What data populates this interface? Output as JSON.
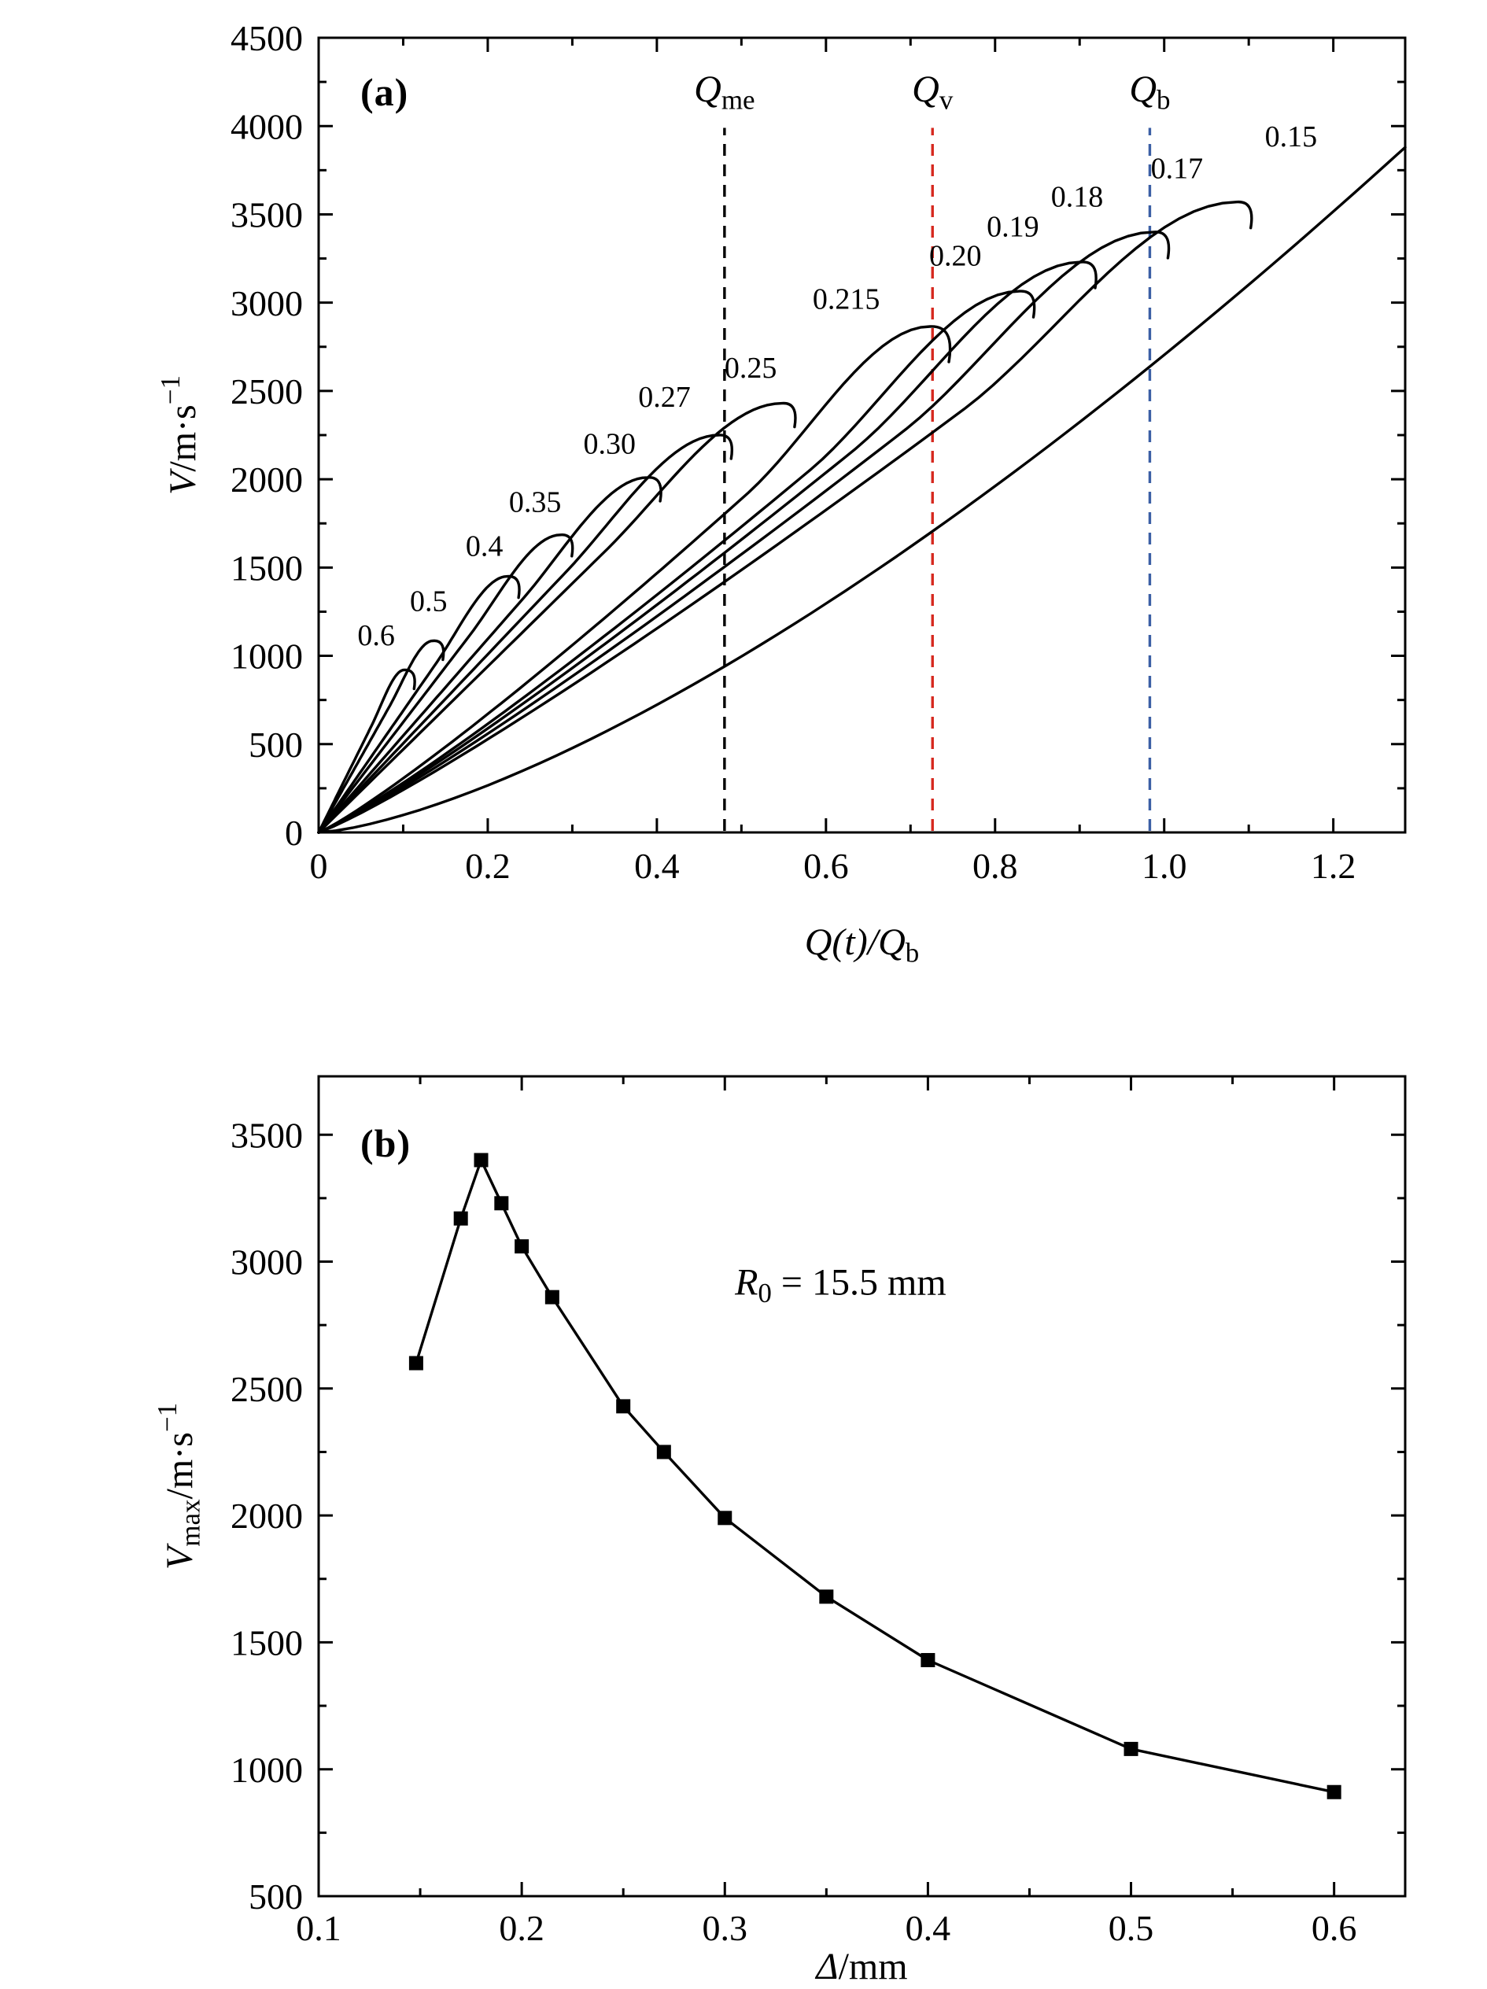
{
  "figure": {
    "background": "#ffffff",
    "axis_color": "#000000",
    "panels": [
      {
        "tag": "(a)"
      },
      {
        "tag": "(b)"
      }
    ]
  },
  "chart_data": [
    {
      "type": "line",
      "panel": "(a)",
      "xlabel_parts": [
        {
          "t": "Q(t)/Q",
          "style": "italic"
        },
        {
          "t": "b",
          "sub": true
        }
      ],
      "ylabel_parts": [
        {
          "t": "V",
          "style": "italic"
        },
        {
          "t": "/m·s"
        },
        {
          "t": "−1",
          "sup": true
        }
      ],
      "xlim": [
        0,
        1.285
      ],
      "ylim": [
        0,
        4500
      ],
      "xticks": {
        "values": [
          0,
          0.2,
          0.4,
          0.6,
          0.8,
          1.0,
          1.2
        ],
        "labels": [
          "0",
          "0.2",
          "0.4",
          "0.6",
          "0.8",
          "1.0",
          "1.2"
        ]
      },
      "yticks": {
        "values": [
          0,
          500,
          1000,
          1500,
          2000,
          2500,
          3000,
          3500,
          4000,
          4500
        ],
        "labels": [
          "0",
          "500",
          "1000",
          "1500",
          "2000",
          "2500",
          "3000",
          "3500",
          "4000",
          "4500"
        ]
      },
      "x_minor_step": 0.1,
      "y_minor_step": 250,
      "curve_color": "#000000",
      "shapes": {
        "short": {
          "a": 1.06,
          "p": 1.0,
          "u0": 0.62
        },
        "long": {
          "a": 1.0,
          "p": 1.13,
          "u0": 0.7
        },
        "burn": {
          "a": 1.0,
          "p": 1.44,
          "u0": 0.99
        }
      },
      "series": [
        {
          "name": "0.6",
          "end": [
            0.101,
            920
          ],
          "label_pos": [
            0.068,
            1060
          ],
          "shape": "short",
          "hook": 0.8
        },
        {
          "name": "0.5",
          "end": [
            0.135,
            1085
          ],
          "label_pos": [
            0.13,
            1255
          ],
          "shape": "short",
          "hook": 0.8
        },
        {
          "name": "0.4",
          "end": [
            0.223,
            1450
          ],
          "label_pos": [
            0.196,
            1565
          ],
          "shape": "short",
          "hook": 0.9
        },
        {
          "name": "0.35",
          "end": [
            0.286,
            1685
          ],
          "label_pos": [
            0.256,
            1815
          ],
          "shape": "short",
          "hook": 0.9
        },
        {
          "name": "0.30",
          "end": [
            0.389,
            2010
          ],
          "label_pos": [
            0.344,
            2145
          ],
          "shape": "short",
          "hook": 1.0
        },
        {
          "name": "0.27",
          "end": [
            0.473,
            2250
          ],
          "label_pos": [
            0.409,
            2410
          ],
          "shape": "short",
          "hook": 1.0
        },
        {
          "name": "0.25",
          "end": [
            0.548,
            2430
          ],
          "label_pos": [
            0.511,
            2575
          ],
          "shape": "short",
          "hook": 1.0
        },
        {
          "name": "0.215",
          "end": [
            0.723,
            2865
          ],
          "label_pos": [
            0.624,
            2965
          ],
          "shape": "long",
          "hook": 1.5
        },
        {
          "name": "0.20",
          "end": [
            0.829,
            3065
          ],
          "label_pos": [
            0.753,
            3210
          ],
          "shape": "long",
          "hook": 1.1
        },
        {
          "name": "0.19",
          "end": [
            0.902,
            3230
          ],
          "label_pos": [
            0.821,
            3375
          ],
          "shape": "long",
          "hook": 1.1
        },
        {
          "name": "0.18",
          "end": [
            0.988,
            3400
          ],
          "label_pos": [
            0.897,
            3545
          ],
          "shape": "long",
          "hook": 1.1
        },
        {
          "name": "0.17",
          "end": [
            1.086,
            3570
          ],
          "label_pos": [
            1.015,
            3705
          ],
          "shape": "long",
          "hook": 1.1
        },
        {
          "name": "0.15",
          "end": [
            1.285,
            3880
          ],
          "label_pos": [
            1.15,
            3885
          ],
          "shape": "burn",
          "hook": 0
        }
      ],
      "vlines": [
        {
          "x": 0.48,
          "color": "#000000",
          "label_parts": [
            {
              "t": "Q",
              "style": "italic"
            },
            {
              "t": "me",
              "sub": true
            }
          ]
        },
        {
          "x": 0.726,
          "color": "#d6281e",
          "label_parts": [
            {
              "t": "Q",
              "style": "italic"
            },
            {
              "t": "v",
              "sub": true
            }
          ]
        },
        {
          "x": 0.983,
          "color": "#3b5fa5",
          "label_parts": [
            {
              "t": "Q",
              "style": "italic"
            },
            {
              "t": "b",
              "sub": true
            }
          ]
        }
      ],
      "vline_top": 3990,
      "vline_label_y": 4140
    },
    {
      "type": "scatter",
      "panel": "(b)",
      "xlabel_parts": [
        {
          "t": "Δ",
          "style": "italic"
        },
        {
          "t": "/mm"
        }
      ],
      "ylabel_parts": [
        {
          "t": "V",
          "style": "italic"
        },
        {
          "t": "max",
          "sub": true
        },
        {
          "t": "/m·s"
        },
        {
          "t": "−1",
          "sup": true
        }
      ],
      "xlim": [
        0.1,
        0.635
      ],
      "ylim": [
        500,
        3730
      ],
      "xticks": {
        "values": [
          0.1,
          0.2,
          0.3,
          0.4,
          0.5,
          0.6
        ],
        "labels": [
          "0.1",
          "0.2",
          "0.3",
          "0.4",
          "0.5",
          "0.6"
        ]
      },
      "yticks": {
        "values": [
          500,
          1000,
          1500,
          2000,
          2500,
          3000,
          3500
        ],
        "labels": [
          "500",
          "1000",
          "1500",
          "2000",
          "2500",
          "3000",
          "3500"
        ]
      },
      "x_minor_step": 0.05,
      "y_minor_step": 250,
      "marker_color": "#000000",
      "points": {
        "x": [
          0.148,
          0.17,
          0.18,
          0.19,
          0.2,
          0.215,
          0.25,
          0.27,
          0.3,
          0.35,
          0.4,
          0.5,
          0.6
        ],
        "y": [
          2600,
          3170,
          3400,
          3230,
          3060,
          2860,
          2430,
          2250,
          1990,
          1680,
          1430,
          1080,
          910
        ]
      },
      "annotation": {
        "parts": [
          {
            "t": "R",
            "style": "italic"
          },
          {
            "t": "0",
            "sub": true
          },
          {
            "t": " = 15.5 mm"
          }
        ],
        "pos": [
          0.357,
          2870
        ]
      }
    }
  ]
}
